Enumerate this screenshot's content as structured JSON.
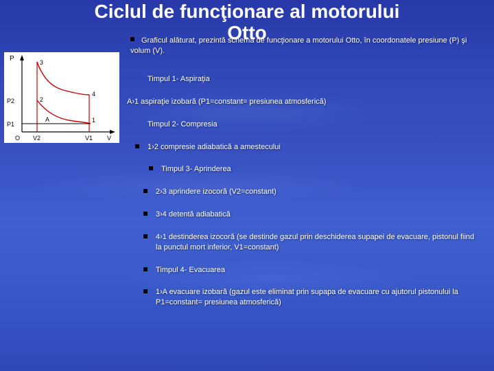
{
  "title_line1": "Ciclul de funcţionare al motorului",
  "title_line2": "Otto",
  "intro": "Graficul alăturat, prezintă schema de funcţionare a motorului Otto, în coordonatele presiune (P) şi volum (V).",
  "items": [
    {
      "text": "Timpul 1- Aspiraţia",
      "indent": 1,
      "bullet": false
    },
    {
      "text": "A›1 aspiraţie izobară (P1=constant= presiunea atmosferică)",
      "indent": 0,
      "bullet": false
    },
    {
      "text": "Timpul 2- Compresia",
      "indent": 1,
      "bullet": false
    },
    {
      "text": "1›2 compresie adiabatică a amestecului",
      "indent": 1,
      "bullet": true
    },
    {
      "text": "Timpul 3- Aprinderea",
      "indent": 3,
      "bullet": true
    },
    {
      "text": "2›3 aprindere izocoră (V2=constant)",
      "indent": 2,
      "bullet": true
    },
    {
      "text": "3›4 detentă adiabatică",
      "indent": 2,
      "bullet": true
    },
    {
      "text": "4›1 destinderea izocoră (se destinde gazul prin deschiderea supapei de evacuare, pistonul fiind la punctul mort inferior, V1=constant)",
      "indent": 2,
      "bullet": true,
      "trail": "supapei de"
    },
    {
      "text": "Timpul 4- Evacuarea",
      "indent": 2,
      "bullet": true
    },
    {
      "text": "1›A evacuare izobară (gazul este eliminat prin supapa de evacuare cu ajutorul pistonului la P1=constant= presiunea atmosferică)",
      "indent": 2,
      "bullet": true
    }
  ],
  "diagram": {
    "labels": {
      "P": "P",
      "P1": "P1",
      "P2": "P2",
      "O": "O",
      "V2": "V2",
      "V1": "V1",
      "V": "V",
      "A": "A",
      "pt1": "1",
      "pt2": "2",
      "pt3": "3",
      "pt4": "4"
    },
    "axis_color": "#000000",
    "curve_color_top": "#cc0000",
    "curve_color_bottom": "#cc0000",
    "vline_left_color": "#cc0000",
    "vline_right_color": "#cc0000",
    "hline_color": "#000000",
    "bg": "#ffffff"
  },
  "colors": {
    "text": "#ffffff",
    "bullet": "#000000"
  }
}
